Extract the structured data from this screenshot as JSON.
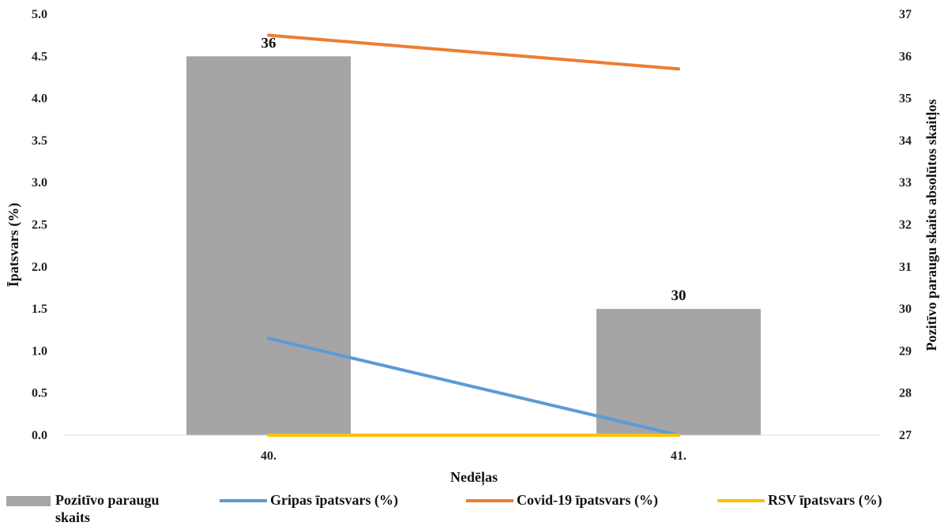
{
  "chart_data": {
    "type": "bar",
    "categories": [
      "40.",
      "41."
    ],
    "xlabel": "Nedēļas",
    "ylabel_left": "Īpatsvars (%)",
    "ylabel_right": "Pozitīvo paraugu skaits absolūtos skaitļos",
    "ylim_left": [
      0,
      5
    ],
    "ylim_right": [
      27,
      37
    ],
    "yticks_left": [
      "0.0",
      "0.5",
      "1.0",
      "1.5",
      "2.0",
      "2.5",
      "3.0",
      "3.5",
      "4.0",
      "4.5",
      "5.0"
    ],
    "yticks_right": [
      "27",
      "28",
      "29",
      "30",
      "31",
      "32",
      "33",
      "34",
      "35",
      "36",
      "37"
    ],
    "grid": false,
    "legend_position": "bottom",
    "series": [
      {
        "name": "Pozitīvo paraugu skaits",
        "type": "bar",
        "axis": "right",
        "values": [
          36,
          30
        ],
        "labels": [
          "36",
          "30"
        ],
        "color": "#a5a5a5"
      },
      {
        "name": "Gripas īpatsvars (%)",
        "type": "line",
        "axis": "left",
        "values": [
          1.15,
          0.0
        ],
        "color": "#5b9bd5"
      },
      {
        "name": "Covid-19 īpatsvars (%)",
        "type": "line",
        "axis": "left",
        "values": [
          4.75,
          4.35
        ],
        "color": "#ed7d31"
      },
      {
        "name": "RSV īpatsvars (%)",
        "type": "line",
        "axis": "left",
        "values": [
          0.0,
          0.0
        ],
        "color": "#ffc000"
      }
    ]
  },
  "legend": {
    "bar_label_line1": "Pozitīvo paraugu",
    "bar_label_line2": "skaits",
    "gripas": "Gripas īpatsvars (%)",
    "covid": "Covid-19 īpatsvars (%)",
    "rsv": "RSV īpatsvars (%)"
  }
}
